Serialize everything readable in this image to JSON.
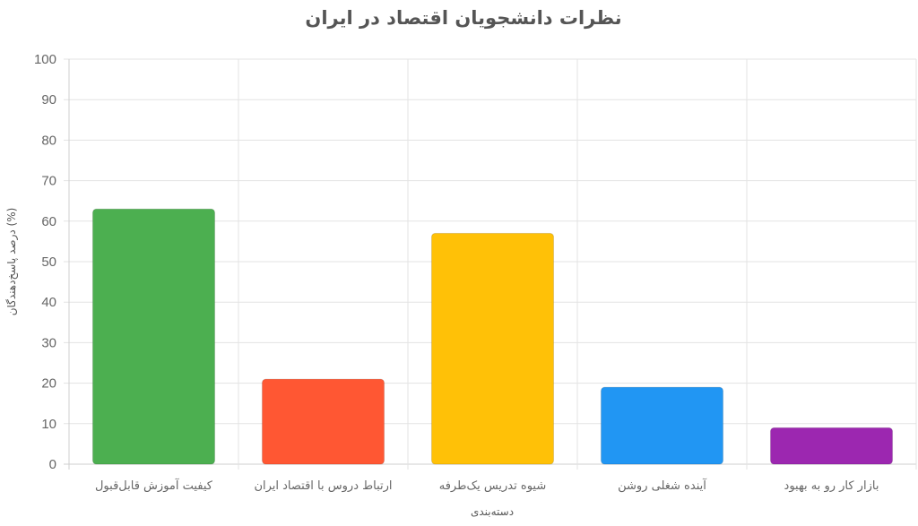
{
  "chart_data": {
    "type": "bar",
    "title": "نظرات دانشجویان اقتصاد در ایران",
    "xlabel": "دسته‌بندی",
    "ylabel": "درصد پاسخ‌دهندگان (%)",
    "ylim": [
      0,
      100
    ],
    "yticks": [
      0,
      10,
      20,
      30,
      40,
      50,
      60,
      70,
      80,
      90,
      100
    ],
    "grid": true,
    "categories": [
      "کیفیت آموزش قابل‌قبول",
      "ارتباط دروس با اقتصاد ایران",
      "شیوه تدریس یک‌طرفه",
      "آینده شغلی روشن",
      "بازار کار رو به بهبود"
    ],
    "values": [
      63,
      21,
      57,
      19,
      9
    ],
    "colors": [
      "#4caf50",
      "#ff5733",
      "#ffc107",
      "#2196f3",
      "#9c27b0"
    ]
  }
}
